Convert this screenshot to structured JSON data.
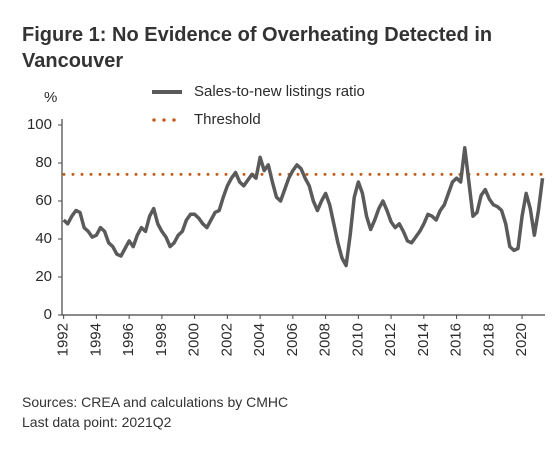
{
  "chart_data": {
    "type": "line",
    "title": "Figure 1: No Evidence of Overheating Detected in Vancouver",
    "y_label": "%",
    "x": [
      1992,
      1992.25,
      1992.5,
      1992.75,
      1993,
      1993.25,
      1993.5,
      1993.75,
      1994,
      1994.25,
      1994.5,
      1994.75,
      1995,
      1995.25,
      1995.5,
      1995.75,
      1996,
      1996.25,
      1996.5,
      1996.75,
      1997,
      1997.25,
      1997.5,
      1997.75,
      1998,
      1998.25,
      1998.5,
      1998.75,
      1999,
      1999.25,
      1999.5,
      1999.75,
      2000,
      2000.25,
      2000.5,
      2000.75,
      2001,
      2001.25,
      2001.5,
      2001.75,
      2002,
      2002.25,
      2002.5,
      2002.75,
      2003,
      2003.25,
      2003.5,
      2003.75,
      2004,
      2004.25,
      2004.5,
      2004.75,
      2005,
      2005.25,
      2005.5,
      2005.75,
      2006,
      2006.25,
      2006.5,
      2006.75,
      2007,
      2007.25,
      2007.5,
      2007.75,
      2008,
      2008.25,
      2008.5,
      2008.75,
      2009,
      2009.25,
      2009.5,
      2009.75,
      2010,
      2010.25,
      2010.5,
      2010.75,
      2011,
      2011.25,
      2011.5,
      2011.75,
      2012,
      2012.25,
      2012.5,
      2012.75,
      2013,
      2013.25,
      2013.5,
      2013.75,
      2014,
      2014.25,
      2014.5,
      2014.75,
      2015,
      2015.25,
      2015.5,
      2015.75,
      2016,
      2016.25,
      2016.5,
      2016.75,
      2017,
      2017.25,
      2017.5,
      2017.75,
      2018,
      2018.25,
      2018.5,
      2018.75,
      2019,
      2019.25,
      2019.5,
      2019.75,
      2020,
      2020.25,
      2020.5,
      2020.75,
      2021,
      2021.25
    ],
    "series": [
      {
        "name": "Sales-to-new listings ratio",
        "color": "#5a5a5a",
        "values": [
          50,
          48,
          52,
          55,
          54,
          46,
          44,
          41,
          42,
          46,
          44,
          38,
          36,
          32,
          31,
          35,
          39,
          36,
          42,
          46,
          44,
          52,
          56,
          48,
          44,
          41,
          36,
          38,
          42,
          44,
          50,
          53,
          53,
          51,
          48,
          46,
          50,
          54,
          55,
          62,
          68,
          72,
          75,
          70,
          68,
          71,
          74,
          72,
          83,
          76,
          79,
          70,
          62,
          60,
          66,
          72,
          76,
          79,
          77,
          72,
          68,
          60,
          55,
          60,
          64,
          58,
          48,
          38,
          30,
          26,
          42,
          62,
          70,
          64,
          52,
          45,
          50,
          56,
          60,
          55,
          49,
          46,
          48,
          44,
          39,
          38,
          41,
          44,
          48,
          53,
          52,
          50,
          55,
          58,
          64,
          70,
          72,
          70,
          88,
          70,
          52,
          54,
          63,
          66,
          61,
          58,
          57,
          55,
          48,
          36,
          34,
          35,
          52,
          64,
          56,
          42,
          55,
          72
        ]
      }
    ],
    "threshold": {
      "name": "Threshold",
      "value": 74,
      "color": "#c0601c"
    },
    "xlim": [
      1991.9,
      2021.4
    ],
    "xticks": [
      1992,
      1994,
      1996,
      1998,
      2000,
      2002,
      2004,
      2006,
      2008,
      2010,
      2012,
      2014,
      2016,
      2018,
      2020
    ],
    "ylim": [
      0,
      100
    ],
    "yticks": [
      0,
      20,
      40,
      60,
      80,
      100
    ],
    "notes": [
      "Sources: CREA and calculations by CMHC",
      "Last data point: 2021Q2"
    ]
  }
}
